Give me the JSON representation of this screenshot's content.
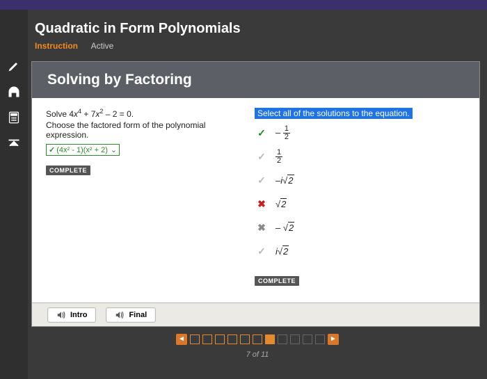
{
  "colors": {
    "top_strip": "#3b2f6e",
    "dark_bg": "#3a3a3a",
    "sidebar": "#2f2f2f",
    "orange": "#f68b1f",
    "lesson_header": "#5c6066",
    "highlight_bg": "#1e74e6",
    "green": "#2a8a2a",
    "red": "#c72020",
    "footer": "#eceae4"
  },
  "header": {
    "title": "Quadratic in Form Polynomials",
    "tabs": {
      "instruction": "Instruction",
      "active": "Active"
    }
  },
  "lesson": {
    "title": "Solving by Factoring",
    "equation_prefix": "Solve 4",
    "equation_var1": "x",
    "equation_exp1": "4",
    "equation_mid": " + 7",
    "equation_var2": "x",
    "equation_exp2": "2",
    "equation_suffix": " – 2 = 0.",
    "factored_prompt": "Choose the factored form of the polynomial expression.",
    "dropdown_value": "(4x² - 1)(x² + 2)",
    "complete_badge": "COMPLETE"
  },
  "right": {
    "heading": "Select all of the solutions to the equation.",
    "answers": [
      {
        "status": "correct-dark",
        "kind": "frac-neg",
        "num": "1",
        "den": "2"
      },
      {
        "status": "correct-light",
        "kind": "frac",
        "num": "1",
        "den": "2"
      },
      {
        "status": "correct-light",
        "kind": "expr",
        "text": "–i√2"
      },
      {
        "status": "wrong-red",
        "kind": "expr",
        "text": "√2"
      },
      {
        "status": "wrong-grey",
        "kind": "expr",
        "text": "– √2"
      },
      {
        "status": "correct-light",
        "kind": "expr",
        "text": "i√2"
      }
    ],
    "complete_badge": "COMPLETE"
  },
  "footer": {
    "intro": "Intro",
    "final": "Final"
  },
  "pager": {
    "total": 11,
    "current": 7,
    "label": "7 of 11",
    "boxes": [
      {
        "state": "open"
      },
      {
        "state": "open"
      },
      {
        "state": "open"
      },
      {
        "state": "open"
      },
      {
        "state": "open"
      },
      {
        "state": "open"
      },
      {
        "state": "filled"
      },
      {
        "state": "disabled"
      },
      {
        "state": "disabled"
      },
      {
        "state": "disabled"
      },
      {
        "state": "disabled"
      }
    ]
  }
}
